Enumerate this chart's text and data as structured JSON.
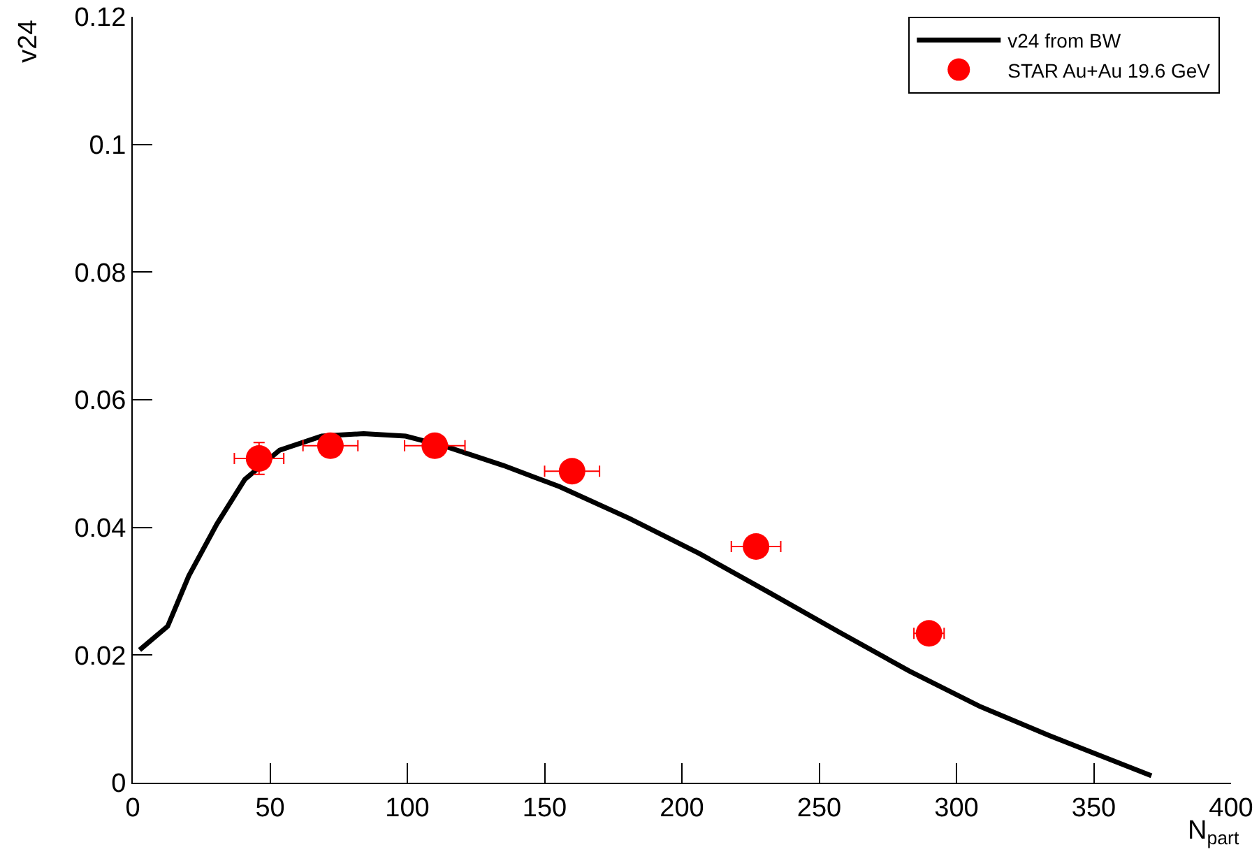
{
  "chart_data": {
    "type": "scatter",
    "xlabel": "N$_{part}$",
    "ylabel": "v24",
    "xlim": [
      0,
      400
    ],
    "xticks": [
      0,
      50,
      100,
      150,
      200,
      250,
      300,
      350,
      400
    ],
    "ylim": [
      0,
      0.12
    ],
    "yticks": [
      0,
      0.02,
      0.04,
      0.06,
      0.08,
      0.1,
      0.12
    ],
    "grid": false,
    "legend": "top right",
    "marker": "circle",
    "series": [
      {
        "name": "v24 from BW",
        "type": "line",
        "color": "#000000",
        "line_style": "solid",
        "marker": "none",
        "x": [
          2.5,
          12.7,
          20.4,
          30.6,
          40.8,
          53.5,
          68.8,
          84.1,
          99.4,
          114.6,
          135,
          155.4,
          180.9,
          206.4,
          231.8,
          257.3,
          282.8,
          308.3,
          333.8,
          371
        ],
        "values": [
          0.0208,
          0.0245,
          0.0324,
          0.0405,
          0.0475,
          0.0521,
          0.0543,
          0.0547,
          0.0543,
          0.0526,
          0.0497,
          0.0464,
          0.0414,
          0.0359,
          0.0298,
          0.0236,
          0.0175,
          0.012,
          0.0074,
          0.0011
        ]
      },
      {
        "name": "STAR Au+Au 19.6 GeV",
        "color": "#ff0000",
        "x": [
          46,
          72,
          110,
          160,
          227,
          290
        ],
        "values": [
          0.0508,
          0.0528,
          0.0528,
          0.0488,
          0.037,
          0.0234
        ],
        "errors": [
          0.0025,
          null,
          null,
          null,
          null,
          null
        ],
        "xerrors": [
          9,
          10,
          11,
          10,
          9,
          5.5
        ]
      }
    ]
  }
}
